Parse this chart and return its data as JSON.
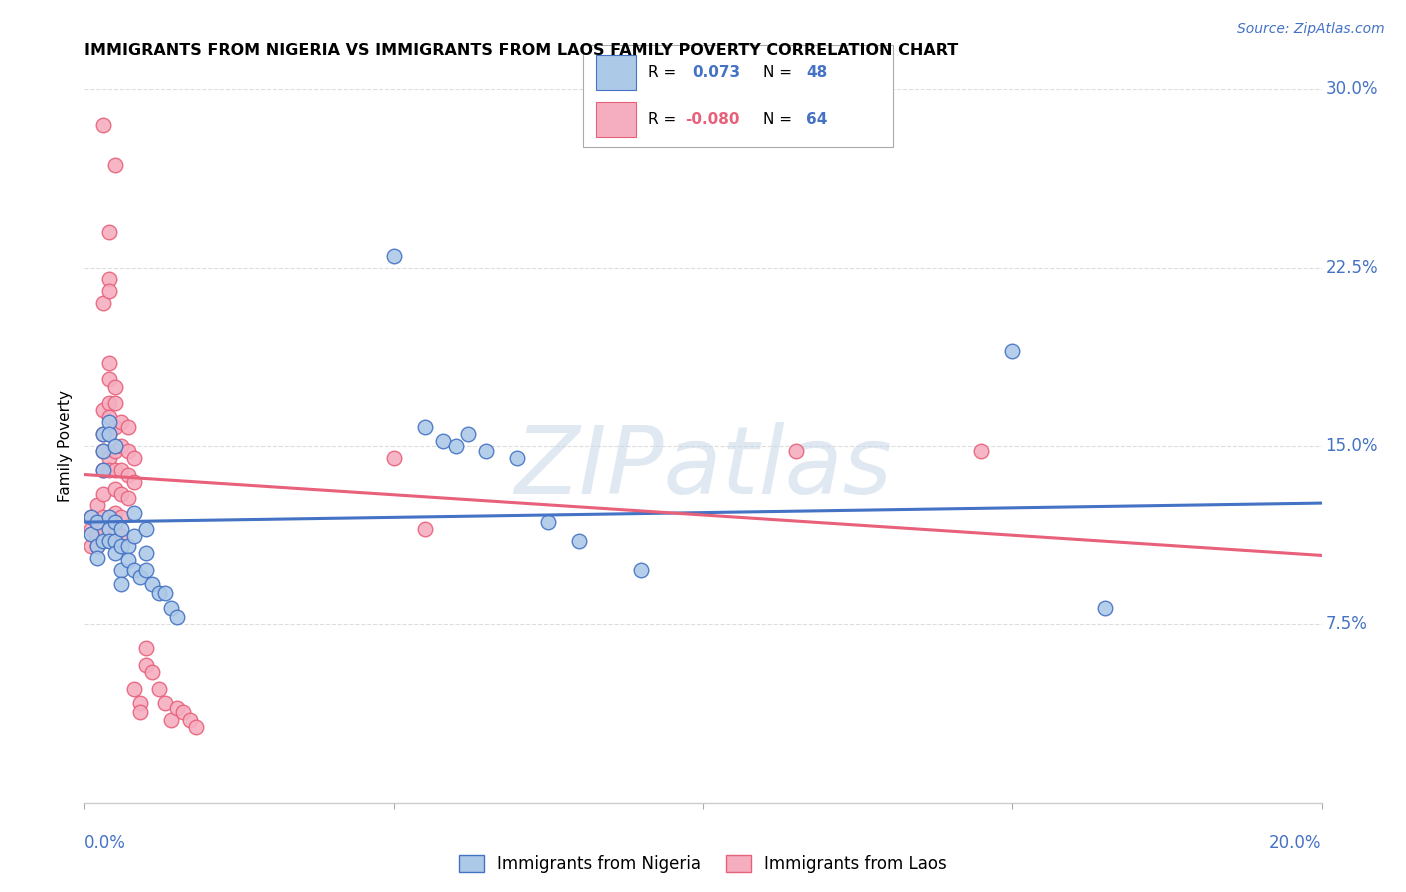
{
  "title": "IMMIGRANTS FROM NIGERIA VS IMMIGRANTS FROM LAOS FAMILY POVERTY CORRELATION CHART",
  "source": "Source: ZipAtlas.com",
  "ylabel": "Family Poverty",
  "yticks": [
    0.0,
    0.075,
    0.15,
    0.225,
    0.3
  ],
  "ytick_labels": [
    "",
    "7.5%",
    "15.0%",
    "22.5%",
    "30.0%"
  ],
  "xlim": [
    0.0,
    0.2
  ],
  "ylim": [
    0.0,
    0.3
  ],
  "nigeria_color": "#adc9e8",
  "laos_color": "#f5aec0",
  "nigeria_line_color": "#4472c4",
  "laos_line_color": "#e8607a",
  "nigeria_scatter": [
    [
      0.001,
      0.12
    ],
    [
      0.001,
      0.113
    ],
    [
      0.002,
      0.118
    ],
    [
      0.002,
      0.108
    ],
    [
      0.002,
      0.103
    ],
    [
      0.003,
      0.155
    ],
    [
      0.003,
      0.148
    ],
    [
      0.003,
      0.14
    ],
    [
      0.003,
      0.11
    ],
    [
      0.004,
      0.16
    ],
    [
      0.004,
      0.155
    ],
    [
      0.004,
      0.12
    ],
    [
      0.004,
      0.115
    ],
    [
      0.004,
      0.11
    ],
    [
      0.005,
      0.15
    ],
    [
      0.005,
      0.118
    ],
    [
      0.005,
      0.11
    ],
    [
      0.005,
      0.105
    ],
    [
      0.006,
      0.115
    ],
    [
      0.006,
      0.108
    ],
    [
      0.006,
      0.098
    ],
    [
      0.006,
      0.092
    ],
    [
      0.007,
      0.108
    ],
    [
      0.007,
      0.102
    ],
    [
      0.008,
      0.122
    ],
    [
      0.008,
      0.112
    ],
    [
      0.008,
      0.098
    ],
    [
      0.009,
      0.095
    ],
    [
      0.01,
      0.115
    ],
    [
      0.01,
      0.105
    ],
    [
      0.01,
      0.098
    ],
    [
      0.011,
      0.092
    ],
    [
      0.012,
      0.088
    ],
    [
      0.013,
      0.088
    ],
    [
      0.014,
      0.082
    ],
    [
      0.015,
      0.078
    ],
    [
      0.05,
      0.23
    ],
    [
      0.055,
      0.158
    ],
    [
      0.058,
      0.152
    ],
    [
      0.06,
      0.15
    ],
    [
      0.062,
      0.155
    ],
    [
      0.065,
      0.148
    ],
    [
      0.07,
      0.145
    ],
    [
      0.075,
      0.118
    ],
    [
      0.08,
      0.11
    ],
    [
      0.09,
      0.098
    ],
    [
      0.15,
      0.19
    ],
    [
      0.165,
      0.082
    ]
  ],
  "laos_scatter": [
    [
      0.001,
      0.12
    ],
    [
      0.001,
      0.115
    ],
    [
      0.001,
      0.108
    ],
    [
      0.002,
      0.125
    ],
    [
      0.002,
      0.118
    ],
    [
      0.002,
      0.112
    ],
    [
      0.002,
      0.108
    ],
    [
      0.003,
      0.285
    ],
    [
      0.003,
      0.21
    ],
    [
      0.003,
      0.165
    ],
    [
      0.003,
      0.155
    ],
    [
      0.003,
      0.148
    ],
    [
      0.003,
      0.14
    ],
    [
      0.003,
      0.13
    ],
    [
      0.003,
      0.12
    ],
    [
      0.003,
      0.115
    ],
    [
      0.004,
      0.24
    ],
    [
      0.004,
      0.22
    ],
    [
      0.004,
      0.215
    ],
    [
      0.004,
      0.185
    ],
    [
      0.004,
      0.178
    ],
    [
      0.004,
      0.168
    ],
    [
      0.004,
      0.162
    ],
    [
      0.004,
      0.155
    ],
    [
      0.004,
      0.145
    ],
    [
      0.004,
      0.14
    ],
    [
      0.005,
      0.268
    ],
    [
      0.005,
      0.175
    ],
    [
      0.005,
      0.168
    ],
    [
      0.005,
      0.158
    ],
    [
      0.005,
      0.148
    ],
    [
      0.005,
      0.14
    ],
    [
      0.005,
      0.132
    ],
    [
      0.005,
      0.122
    ],
    [
      0.005,
      0.115
    ],
    [
      0.006,
      0.16
    ],
    [
      0.006,
      0.15
    ],
    [
      0.006,
      0.14
    ],
    [
      0.006,
      0.13
    ],
    [
      0.006,
      0.12
    ],
    [
      0.006,
      0.112
    ],
    [
      0.007,
      0.158
    ],
    [
      0.007,
      0.148
    ],
    [
      0.007,
      0.138
    ],
    [
      0.007,
      0.128
    ],
    [
      0.008,
      0.145
    ],
    [
      0.008,
      0.135
    ],
    [
      0.008,
      0.048
    ],
    [
      0.009,
      0.042
    ],
    [
      0.009,
      0.038
    ],
    [
      0.01,
      0.065
    ],
    [
      0.01,
      0.058
    ],
    [
      0.011,
      0.055
    ],
    [
      0.012,
      0.048
    ],
    [
      0.013,
      0.042
    ],
    [
      0.014,
      0.035
    ],
    [
      0.015,
      0.04
    ],
    [
      0.016,
      0.038
    ],
    [
      0.017,
      0.035
    ],
    [
      0.018,
      0.032
    ],
    [
      0.05,
      0.145
    ],
    [
      0.055,
      0.115
    ],
    [
      0.115,
      0.148
    ],
    [
      0.145,
      0.148
    ]
  ],
  "watermark": "ZIPatlas",
  "grid_color": "#dddddd"
}
